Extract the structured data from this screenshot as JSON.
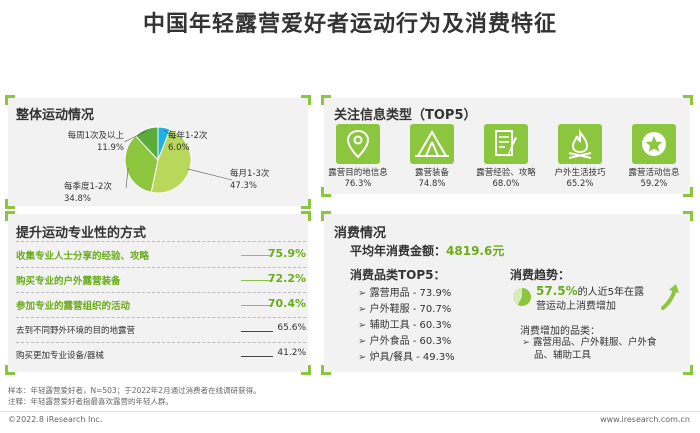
{
  "page": {
    "title": "中国年轻露营爱好者运动行为及消费特征",
    "note1": "样本：年轻露营爱好者，N=503；于2022年2月通过消费者在线调研获得。",
    "note2": "注释：年轻露营爱好者指最喜欢露营的年轻人群。",
    "copyright": "©2022.8 iResearch Inc.",
    "website": "www.iresearch.com.cn"
  },
  "colors": {
    "accent": "#8cc63f",
    "accent_dark": "#6aac1c",
    "panel": "#f2f2f2"
  },
  "chart_data": {
    "type": "pie",
    "title": "整体运动情况",
    "categories": [
      "每月1-3次",
      "每季度1-2次",
      "每周1次及以上",
      "每年1-2次"
    ],
    "values": [
      47.3,
      34.8,
      11.9,
      6.0
    ],
    "labels": [
      "47.3%",
      "34.8%",
      "11.9%",
      "6.0%"
    ],
    "colors": [
      "#b9d75a",
      "#8cc63f",
      "#5aab3a",
      "#1fb1e3"
    ]
  },
  "methods": {
    "title": "提升运动专业性的方式",
    "items": [
      {
        "label": "收集专业人士分享的经验、攻略",
        "value": "75.9%",
        "highlight": true
      },
      {
        "label": "购买专业的户外露营装备",
        "value": "72.2%",
        "highlight": true
      },
      {
        "label": "参加专业的露营组织的活动",
        "value": "70.4%",
        "highlight": true
      },
      {
        "label": "去到不同野外环境的目的地露营",
        "value": "65.6%",
        "highlight": false
      },
      {
        "label": "购买更加专业设备/器械",
        "value": "41.2%",
        "highlight": false
      }
    ]
  },
  "info": {
    "title": "关注信息类型（TOP5）",
    "items": [
      {
        "name": "露营目的地信息",
        "value": "76.3%",
        "icon": "map-pin-icon"
      },
      {
        "name": "露营装备",
        "value": "74.8%",
        "icon": "tent-icon"
      },
      {
        "name": "露营经验、攻略",
        "value": "68.0%",
        "icon": "notes-pen-icon"
      },
      {
        "name": "户外生活技巧",
        "value": "65.2%",
        "icon": "campfire-icon"
      },
      {
        "name": "露营活动信息",
        "value": "59.2%",
        "icon": "star-badge-icon"
      }
    ]
  },
  "consumption": {
    "title": "消费情况",
    "avg_label": "平均年消费金额：",
    "avg_value": "4819.6元",
    "top5_title": "消费品类TOP5：",
    "top5": [
      "露营用品 - 73.9%",
      "户外鞋服 - 70.7%",
      "辅助工具 - 60.3%",
      "户外食品 - 60.3%",
      "炉具/餐具 - 49.3%"
    ],
    "trend_title": "消费趋势：",
    "trend_pct": "57.5%",
    "trend_text1": "的人近5年在露",
    "trend_text2": "营运动上消费增加",
    "trend_share": 0.575,
    "increase_title": "消费增加的品类：",
    "increase_line1": "露营用品、户外鞋服、户外食",
    "increase_line2": "品、辅助工具"
  }
}
